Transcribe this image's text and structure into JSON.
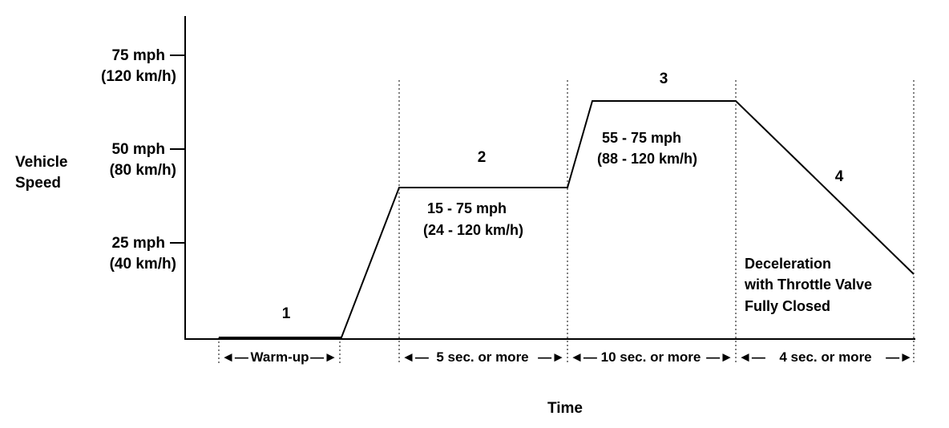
{
  "y_axis": {
    "label_line1": "Vehicle",
    "label_line2": "Speed",
    "ticks": [
      {
        "mph": "75 mph",
        "kmh": "(120 km/h)"
      },
      {
        "mph": "50 mph",
        "kmh": "(80 km/h)"
      },
      {
        "mph": "25 mph",
        "kmh": "(40 km/h)"
      }
    ]
  },
  "x_axis": {
    "label": "Time"
  },
  "phases": [
    {
      "number": "1",
      "duration": "Warm-up"
    },
    {
      "number": "2",
      "speed_line1": "15 - 75 mph",
      "speed_line2": "(24 - 120 km/h)",
      "duration": "5 sec. or  more"
    },
    {
      "number": "3",
      "speed_line1": "55 - 75 mph",
      "speed_line2": "(88 - 120 km/h)",
      "duration": "10 sec. or  more"
    },
    {
      "number": "4",
      "note_line1": "Deceleration",
      "note_line2": "with Throttle Valve",
      "note_line3": "Fully Closed",
      "duration": "4 sec. or  more"
    }
  ],
  "arrow_left_glyph": "◄—",
  "arrow_right_glyph": "—►"
}
